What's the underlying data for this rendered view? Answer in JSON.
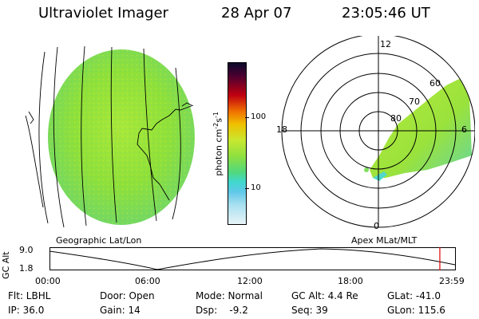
{
  "header": {
    "instrument": "Ultraviolet Imager",
    "date": "28 Apr 07",
    "time": "23:05:46 UT"
  },
  "colorbar": {
    "unit_label": "photon cm",
    "unit_exp_a": "-2",
    "unit_mid": "s",
    "unit_exp_b": "-1",
    "ticks": [
      "100",
      "10"
    ]
  },
  "geo_panel": {
    "label": "Geographic Lat/Lon"
  },
  "polar_panel": {
    "label": "Apex MLat/MLT",
    "hour_labels": {
      "top": "12",
      "left": "18",
      "right": "6",
      "bottom": "0"
    },
    "lat_labels": [
      "60",
      "70",
      "80"
    ]
  },
  "timeline": {
    "ylabel": "GC Alt",
    "y_ticks": [
      "9.0",
      "1.8"
    ],
    "x_ticks": [
      "00:00",
      "06:00",
      "12:00",
      "18:00",
      "23:59"
    ],
    "current_marker_hours": 23.1,
    "marker_color": "#e00000"
  },
  "info": {
    "flt": "Flt: LBHL",
    "ip": "IP: 36.0",
    "door": "Door: Open",
    "gain": "Gain: 14",
    "mode": "Mode: Normal",
    "dsp": "Dsp:    -9.2",
    "gcalt": "GC Alt: 4.4 Re",
    "seq": "Seq: 39",
    "glat": "GLat: -41.0",
    "glon": "GLon: 115.6"
  }
}
